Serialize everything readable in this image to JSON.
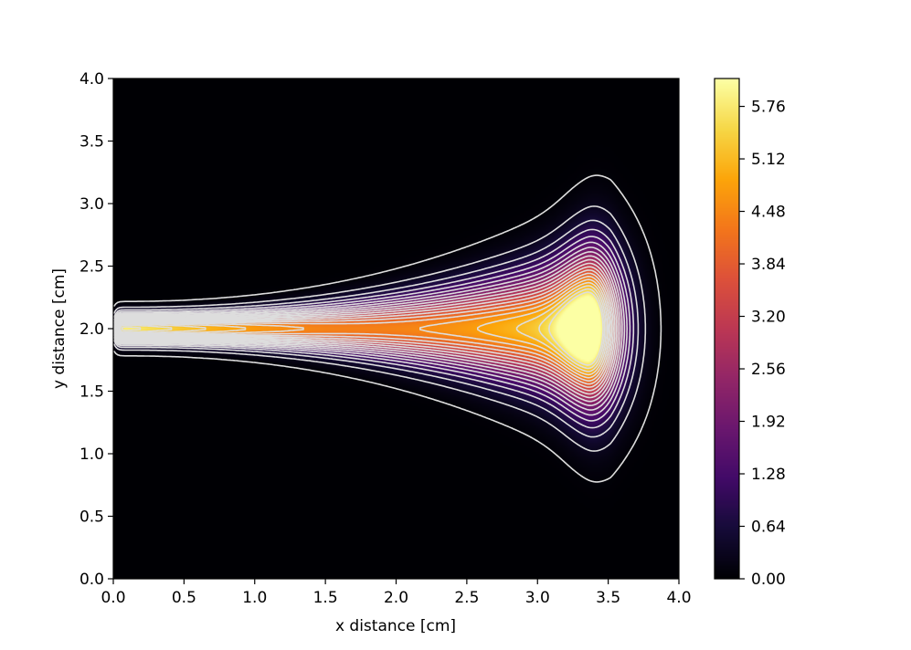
{
  "chart_data": {
    "type": "heatmap",
    "title": "",
    "xlabel": "x distance [cm]",
    "ylabel": "y distance [cm]",
    "xlim": [
      0.0,
      4.0
    ],
    "ylim": [
      0.0,
      4.0
    ],
    "xticks": [
      "0.0",
      "0.5",
      "1.0",
      "1.5",
      "2.0",
      "2.5",
      "3.0",
      "3.5",
      "4.0"
    ],
    "yticks": [
      "0.0",
      "0.5",
      "1.0",
      "1.5",
      "2.0",
      "2.5",
      "3.0",
      "3.5",
      "4.0"
    ],
    "colormap": "inferno",
    "colorbar": {
      "range": [
        0.0,
        6.1
      ],
      "ticks": [
        "0.00",
        "0.64",
        "1.28",
        "1.92",
        "2.56",
        "3.20",
        "3.84",
        "4.48",
        "5.12",
        "5.76"
      ],
      "tick_values": [
        0.0,
        0.64,
        1.28,
        1.92,
        2.56,
        3.2,
        3.84,
        4.48,
        5.12,
        5.76
      ]
    },
    "contour_levels": [
      0.05,
      0.3,
      0.6,
      0.9,
      1.2,
      1.5,
      1.8,
      2.1,
      2.4,
      2.7,
      3.0,
      3.3,
      3.6,
      3.9,
      4.2,
      4.5,
      4.8,
      5.1,
      5.4,
      5.7
    ],
    "contour_color": "#dddddd",
    "grid": false,
    "features": {
      "beam_start_x": 0.0,
      "beam_center_y": 2.0,
      "peak_x": 3.35,
      "peak_y": 2.0,
      "peak_value": 6.1,
      "max_extent_x": 3.75,
      "max_half_width_y": 0.85
    }
  }
}
